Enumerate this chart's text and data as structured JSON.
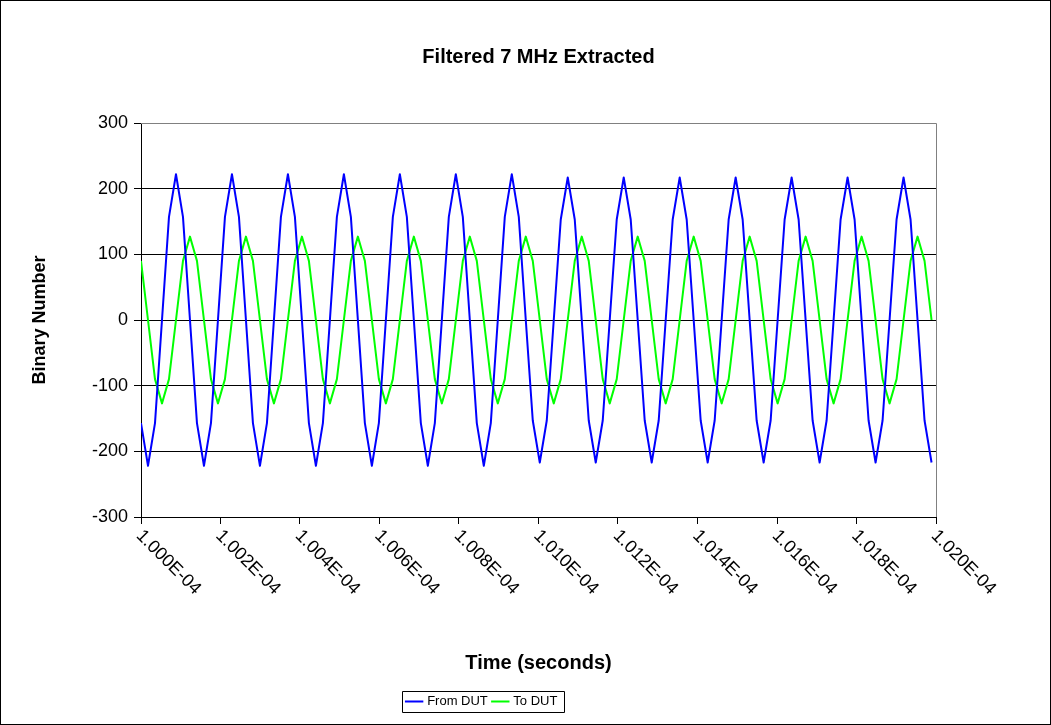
{
  "chart_data": {
    "type": "line",
    "title": "Filtered 7 MHz Extracted",
    "xlabel": "Time (seconds)",
    "ylabel": "Binary Number",
    "x": [
      0.0001,
      0.0001000176,
      0.0001000352,
      0.0001000528,
      0.0001000704,
      0.000100088,
      0.0001001056,
      0.0001001232,
      0.0001001408,
      0.0001001584,
      0.000100176,
      0.0001001936,
      0.0001002112,
      0.0001002288,
      0.0001002464,
      0.000100264,
      0.0001002816,
      0.0001002992,
      0.0001003168,
      0.0001003344,
      0.000100352,
      0.0001003696,
      0.0001003872,
      0.0001004048,
      0.0001004224,
      0.00010044,
      0.0001004576,
      0.0001004752,
      0.0001004928,
      0.0001005104,
      0.000100528,
      0.0001005456,
      0.0001005632,
      0.0001005808,
      0.0001005984,
      0.000100616,
      0.0001006336,
      0.0001006512,
      0.0001006688,
      0.0001006864,
      0.000100704,
      0.0001007216,
      0.0001007392,
      0.0001007568,
      0.0001007744,
      0.000100792,
      0.0001008096,
      0.0001008272,
      0.0001008448,
      0.0001008624,
      0.00010088,
      0.0001008976,
      0.0001009152,
      0.0001009328,
      0.0001009504,
      0.000100968,
      0.0001009856,
      0.0001010032,
      0.0001010208,
      0.0001010384,
      0.000101056,
      0.0001010736,
      0.0001010912,
      0.0001011088,
      0.0001011264,
      0.000101144,
      0.0001011616,
      0.0001011792,
      0.0001011968,
      0.0001012144,
      0.000101232,
      0.0001012496,
      0.0001012672,
      0.0001012848,
      0.0001013024,
      0.00010132,
      0.0001013376,
      0.0001013552,
      0.0001013728,
      0.0001013904,
      0.000101408,
      0.0001014256,
      0.0001014432,
      0.0001014608,
      0.0001014784,
      0.000101496,
      0.0001015136,
      0.0001015312,
      0.0001015488,
      0.0001015664,
      0.000101584,
      0.0001016016,
      0.0001016192,
      0.0001016368,
      0.0001016544,
      0.000101672,
      0.0001016896,
      0.0001017072,
      0.0001017248,
      0.0001017424,
      0.00010176,
      0.0001017776,
      0.0001017952,
      0.0001018128,
      0.0001018304,
      0.000101848,
      0.0001018656,
      0.0001018832,
      0.0001019008,
      0.0001019184,
      0.000101936,
      0.0001019536,
      0.0001019712,
      0.0001019888
    ],
    "series": [
      {
        "name": "From DUT",
        "color": "#0000ff",
        "values": [
          -157,
          -222,
          -157,
          0,
          157,
          222,
          157,
          0,
          -157,
          -222,
          -157,
          0,
          157,
          222,
          157,
          0,
          -157,
          -222,
          -157,
          0,
          157,
          222,
          157,
          0,
          -157,
          -222,
          -157,
          0,
          157,
          222,
          157,
          0,
          -157,
          -222,
          -157,
          0,
          157,
          222,
          157,
          0,
          -157,
          -222,
          -157,
          0,
          157,
          222,
          157,
          0,
          -157,
          -222,
          -157,
          0,
          157,
          222,
          157,
          0,
          -153,
          -217,
          -153,
          0,
          153,
          217,
          153,
          0,
          -153,
          -217,
          -153,
          0,
          153,
          217,
          153,
          0,
          -153,
          -217,
          -153,
          0,
          153,
          217,
          153,
          0,
          -153,
          -217,
          -153,
          0,
          153,
          217,
          153,
          0,
          -153,
          -217,
          -153,
          0,
          153,
          217,
          153,
          0,
          -153,
          -217,
          -153,
          0,
          153,
          217,
          153,
          0,
          -153,
          -217,
          -153,
          0,
          153,
          217,
          153,
          0,
          -153,
          -217
        ]
      },
      {
        "name": "To DUT",
        "color": "#00ff00",
        "values": [
          90,
          0,
          -90,
          -127,
          -90,
          0,
          90,
          127,
          90,
          0,
          -90,
          -127,
          -90,
          0,
          90,
          127,
          90,
          0,
          -90,
          -127,
          -90,
          0,
          90,
          127,
          90,
          0,
          -90,
          -127,
          -90,
          0,
          90,
          127,
          90,
          0,
          -90,
          -127,
          -90,
          0,
          90,
          127,
          90,
          0,
          -90,
          -127,
          -90,
          0,
          90,
          127,
          90,
          0,
          -90,
          -127,
          -90,
          0,
          90,
          127,
          90,
          0,
          -90,
          -127,
          -90,
          0,
          90,
          127,
          90,
          0,
          -90,
          -127,
          -90,
          0,
          90,
          127,
          90,
          0,
          -90,
          -127,
          -90,
          0,
          90,
          127,
          90,
          0,
          -90,
          -127,
          -90,
          0,
          90,
          127,
          90,
          0,
          -90,
          -127,
          -90,
          0,
          90,
          127,
          90,
          0,
          -90,
          -127,
          -90,
          0,
          90,
          127,
          90,
          0,
          -90,
          -127,
          -90,
          0,
          90,
          127,
          90,
          0
        ]
      }
    ],
    "xlim": [
      0.0001,
      0.000102
    ],
    "xticks": [
      {
        "value": 0.0001,
        "label": "1.000E-04"
      },
      {
        "value": 0.0001002,
        "label": "1.002E-04"
      },
      {
        "value": 0.0001004,
        "label": "1.004E-04"
      },
      {
        "value": 0.0001006,
        "label": "1.006E-04"
      },
      {
        "value": 0.0001008,
        "label": "1.008E-04"
      },
      {
        "value": 0.000101,
        "label": "1.010E-04"
      },
      {
        "value": 0.0001012,
        "label": "1.012E-04"
      },
      {
        "value": 0.0001014,
        "label": "1.014E-04"
      },
      {
        "value": 0.0001016,
        "label": "1.016E-04"
      },
      {
        "value": 0.0001018,
        "label": "1.018E-04"
      },
      {
        "value": 0.000102,
        "label": "1.020E-04"
      }
    ],
    "ylim": [
      -300,
      300
    ],
    "yticks": [
      -300,
      -200,
      -100,
      0,
      100,
      200,
      300
    ],
    "grid": "y",
    "legend": "bottom",
    "marker": "none",
    "line_style": "solid"
  }
}
